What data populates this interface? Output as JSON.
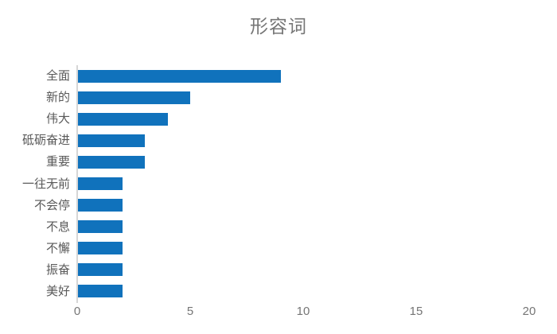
{
  "chart_data": {
    "type": "bar",
    "orientation": "horizontal",
    "title": "形容词",
    "categories": [
      "全面",
      "新的",
      "伟大",
      "砥砺奋进",
      "重要",
      "一往无前",
      "不会停",
      "不息",
      "不懈",
      "振奋",
      "美好"
    ],
    "values": [
      9,
      5,
      4,
      3,
      3,
      2,
      2,
      2,
      2,
      2,
      2
    ],
    "xlabel": "",
    "ylabel": "",
    "xlim": [
      0,
      20
    ],
    "x_ticks": [
      "0",
      "5",
      "10",
      "15",
      "20"
    ],
    "x_tick_values": [
      0,
      5,
      10,
      15,
      20
    ],
    "grid": false,
    "legend": false,
    "colors": {
      "bar": "#1072BC",
      "title": "#767676",
      "category_label": "#595959",
      "tick_label": "#757575",
      "axis_line": "#D6D6D6",
      "background": "#FFFFFF"
    }
  }
}
